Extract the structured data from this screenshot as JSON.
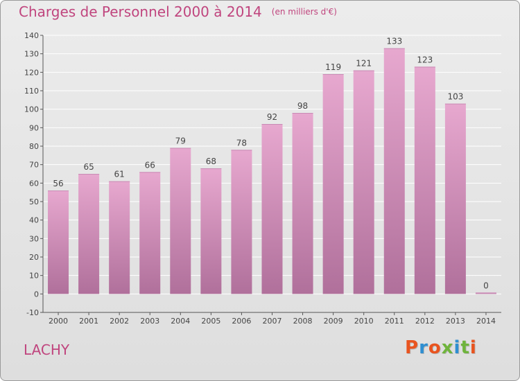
{
  "header": {
    "title": "Charges de Personnel 2000 à 2014",
    "unit": "(en milliers d'€)"
  },
  "footer": {
    "town": "LACHY",
    "brand": "Proxiti"
  },
  "colors": {
    "accent": "#c0457e",
    "bar_top": "#e7a8cf",
    "bar_bottom": "#b0709b",
    "grid": "#ffffff",
    "brand_letters": [
      "#e9541f",
      "#2f8fd1",
      "#e9541f",
      "#6fb43c",
      "#2f8fd1",
      "#6fb43c",
      "#e9541f"
    ]
  },
  "chart_data": {
    "type": "bar",
    "title": "Charges de Personnel 2000 à 2014",
    "subtitle": "(en milliers d'€)",
    "categories": [
      "2000",
      "2001",
      "2002",
      "2003",
      "2004",
      "2005",
      "2006",
      "2007",
      "2008",
      "2009",
      "2010",
      "2011",
      "2012",
      "2013",
      "2014"
    ],
    "values": [
      56,
      65,
      61,
      66,
      79,
      68,
      78,
      92,
      98,
      119,
      121,
      133,
      123,
      103,
      0
    ],
    "ylim": [
      -10,
      140
    ],
    "yticks": [
      -10,
      0,
      10,
      20,
      30,
      40,
      50,
      60,
      70,
      80,
      90,
      100,
      110,
      120,
      130,
      140
    ],
    "grid": true,
    "data_labels": true
  }
}
